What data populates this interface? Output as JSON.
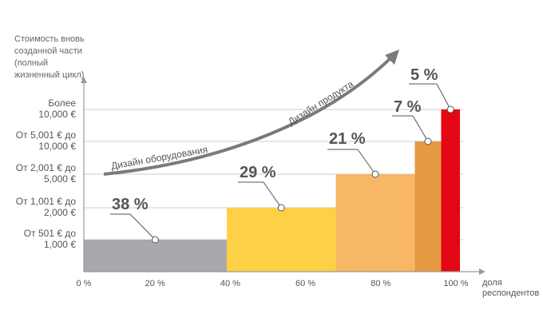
{
  "chart_data": {
    "type": "bar",
    "ylabel_lines": [
      "Стоимость вновь",
      "созданной части",
      "(полный",
      "жизненный цикл)"
    ],
    "xlabel_lines": [
      "доля",
      "респондентов"
    ],
    "x_ticks": [
      "0 %",
      "20 %",
      "40 %",
      "60 %",
      "80 %",
      "100 %"
    ],
    "x_tick_values": [
      0,
      20,
      40,
      60,
      80,
      100
    ],
    "y_categories": [
      {
        "line1": "От 501 € до",
        "line2": "1,000 €"
      },
      {
        "line1": "От 1,001 € до",
        "line2": "2,000 €"
      },
      {
        "line1": "От 2,001 € до",
        "line2": "5,000 €"
      },
      {
        "line1": "От 5,001 € до",
        "line2": "10,000 €"
      },
      {
        "line1": "Более",
        "line2": "10,000 €"
      }
    ],
    "segments": [
      {
        "label": "38 %",
        "value": 38,
        "level": 1,
        "color": "#a7a9ac"
      },
      {
        "label": "29 %",
        "value": 29,
        "level": 2,
        "color": "#fdd045"
      },
      {
        "label": "21 %",
        "value": 21,
        "level": 3,
        "color": "#f7b766"
      },
      {
        "label": "7 %",
        "value": 7,
        "level": 4,
        "color": "#e59a41"
      },
      {
        "label": "5 %",
        "value": 5,
        "level": 5,
        "color": "#e30613"
      }
    ],
    "arrow_labels": {
      "hardware": "Дизайн оборудования",
      "product": "Дизайн продукта"
    },
    "colors": {
      "axis": "#999999",
      "grid": "#cccccc",
      "arrow": "#7a7a7a"
    }
  }
}
